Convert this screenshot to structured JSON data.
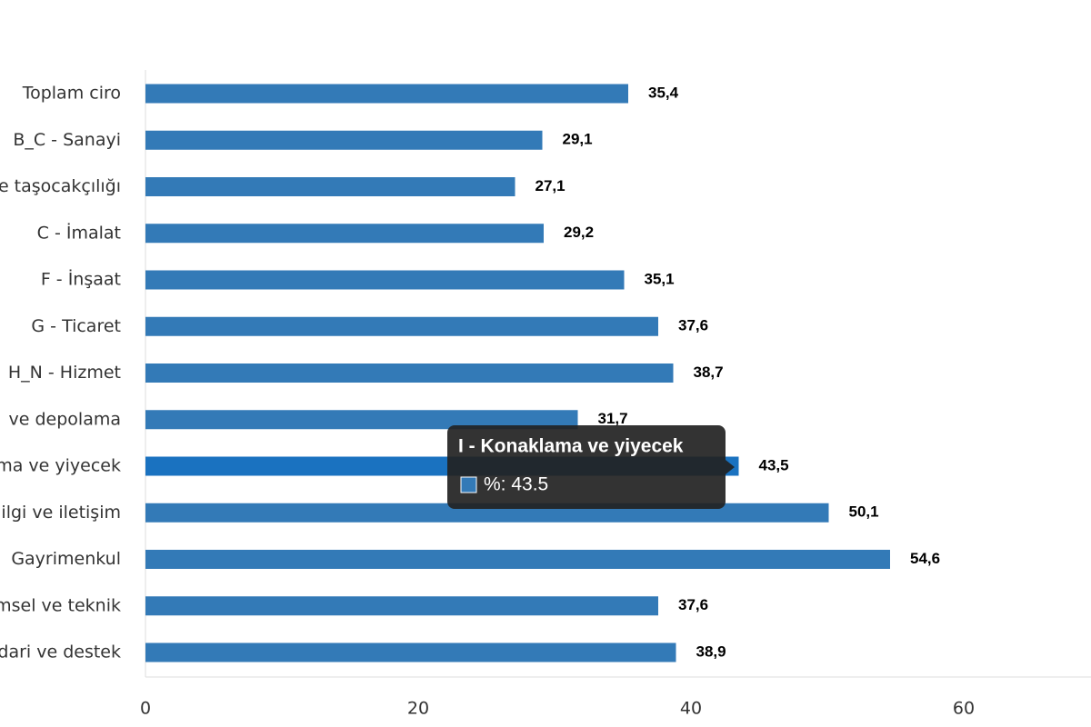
{
  "chart_data": {
    "type": "hbar",
    "categories": [
      "Toplam ciro",
      "B_C - Sanayi",
      "e taşocakçılığı",
      "C - İmalat",
      "F - İnşaat",
      "G - Ticaret",
      "H_N - Hizmet",
      "ve depolama",
      "ma ve yiyecek",
      "ilgi ve iletişim",
      "Gayrimenkul",
      "msel ve teknik",
      "dari ve destek"
    ],
    "values": [
      35.4,
      29.1,
      27.1,
      29.2,
      35.1,
      37.6,
      38.7,
      31.7,
      43.5,
      50.1,
      54.6,
      37.6,
      38.9
    ],
    "value_labels": [
      "35,4",
      "29,1",
      "27,1",
      "29,2",
      "35,1",
      "37,6",
      "38,7",
      "31,7",
      "43,5",
      "50,1",
      "54,6",
      "37,6",
      "38,9"
    ],
    "color": "#337ab7",
    "highlight_color": "#1a72c0",
    "highlight": 8,
    "xlim": [
      0,
      70
    ],
    "xticks": [
      0,
      20,
      40,
      60
    ],
    "tooltip": {
      "title": "I - Konaklama ve yiyecek",
      "text": "%: 43.5"
    }
  }
}
